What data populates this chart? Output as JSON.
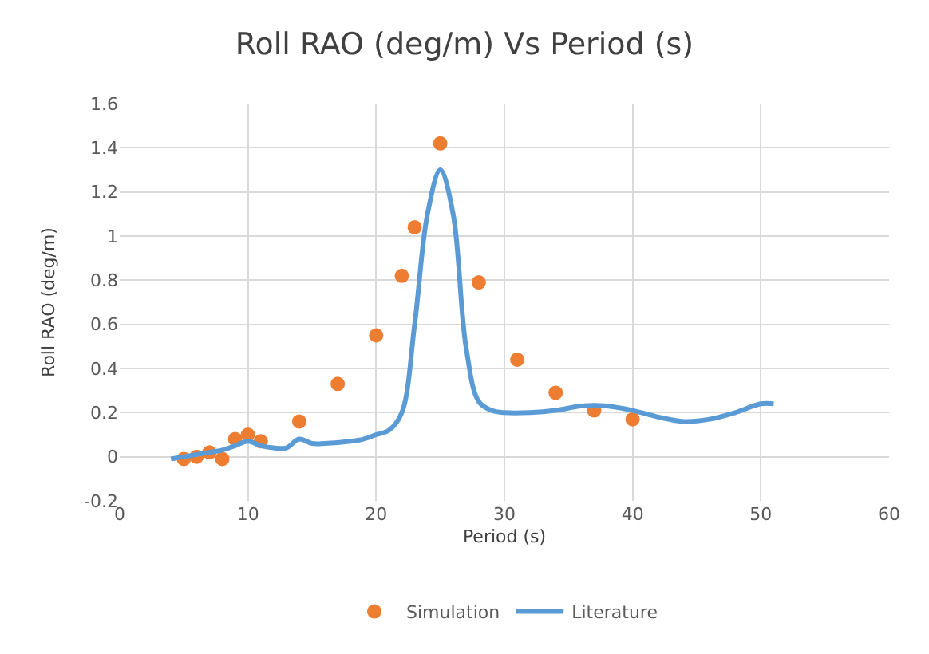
{
  "chart_data": {
    "type": "scatter",
    "title": "Roll RAO (deg/m) Vs Period (s)",
    "xlabel": "Period (s)",
    "ylabel": "Roll RAO (deg/m)",
    "xlim": [
      0,
      60
    ],
    "xticks": [
      0,
      10,
      20,
      30,
      40,
      50,
      60
    ],
    "ylim": [
      -0.2,
      1.6
    ],
    "yticks": [
      -0.2,
      0,
      0.2,
      0.4,
      0.6,
      0.8,
      1,
      1.2,
      1.4,
      1.6
    ],
    "grid": true,
    "legend": "bottom",
    "series": [
      {
        "name": "Simulation",
        "marker": "circle",
        "color": "#ed7d31",
        "x": [
          5,
          6,
          7,
          8,
          9,
          10,
          11,
          14,
          17,
          20,
          22,
          23,
          25,
          28,
          31,
          34,
          37,
          40
        ],
        "values": [
          -0.01,
          0.0,
          0.02,
          -0.01,
          0.08,
          0.1,
          0.07,
          0.16,
          0.33,
          0.55,
          0.82,
          1.04,
          1.42,
          0.79,
          0.44,
          0.29,
          0.21,
          0.17
        ]
      },
      {
        "name": "Literature",
        "type": "line",
        "marker": "none",
        "line_style": "solid",
        "color": "#5b9bd5",
        "x": [
          4,
          5,
          6,
          7,
          8,
          9,
          10,
          11,
          12,
          13,
          14,
          15,
          16,
          18,
          19,
          20,
          21,
          22,
          23,
          24,
          25,
          26,
          27,
          28,
          29,
          30,
          32,
          34,
          36,
          38,
          40,
          42,
          44,
          46,
          48,
          50,
          51
        ],
        "values": [
          -0.01,
          0.0,
          0.01,
          0.02,
          0.03,
          0.05,
          0.07,
          0.05,
          0.04,
          0.04,
          0.08,
          0.06,
          0.06,
          0.07,
          0.08,
          0.1,
          0.12,
          0.2,
          0.6,
          1.1,
          1.3,
          1.1,
          0.5,
          0.25,
          0.21,
          0.2,
          0.2,
          0.21,
          0.23,
          0.23,
          0.21,
          0.18,
          0.16,
          0.17,
          0.2,
          0.24,
          0.24
        ]
      }
    ]
  }
}
